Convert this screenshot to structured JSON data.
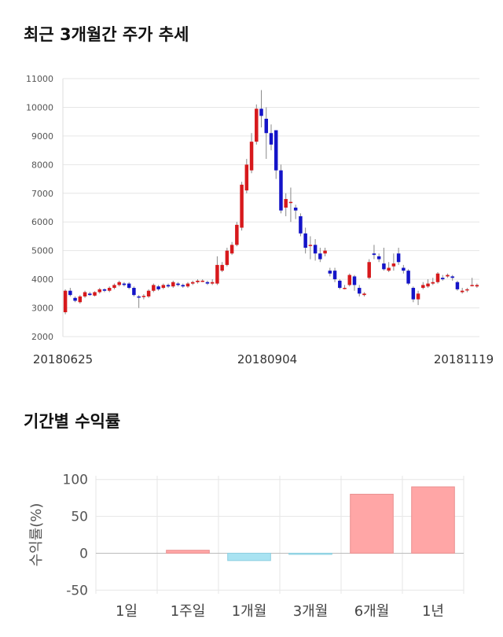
{
  "sections": {
    "price_title": "최근 3개월간 주가 추세",
    "return_title": "기간별 수익률"
  },
  "colors": {
    "up": "#d7191c",
    "down": "#1414c8",
    "bar_positive": "#ffa6a6",
    "bar_negative": "#a9e3f2"
  },
  "chart_data": [
    {
      "type": "candlestick",
      "ylim": [
        2000,
        11000
      ],
      "yticks": [
        2000,
        3000,
        4000,
        5000,
        6000,
        7000,
        8000,
        9000,
        10000,
        11000
      ],
      "x_tick_labels": [
        "20180625",
        "20180904",
        "20181119"
      ],
      "grid": true,
      "candles": [
        [
          2850,
          3600,
          2780,
          3650
        ],
        [
          3600,
          3450,
          3400,
          3700
        ],
        [
          3350,
          3250,
          3200,
          3400
        ],
        [
          3200,
          3400,
          3150,
          3450
        ],
        [
          3400,
          3550,
          3350,
          3600
        ],
        [
          3500,
          3450,
          3420,
          3560
        ],
        [
          3430,
          3550,
          3400,
          3580
        ],
        [
          3550,
          3650,
          3500,
          3700
        ],
        [
          3650,
          3600,
          3550,
          3680
        ],
        [
          3600,
          3700,
          3550,
          3750
        ],
        [
          3700,
          3800,
          3650,
          3850
        ],
        [
          3800,
          3900,
          3750,
          3950
        ],
        [
          3850,
          3800,
          3750,
          3900
        ],
        [
          3850,
          3700,
          3650,
          3900
        ],
        [
          3700,
          3450,
          3400,
          3750
        ],
        [
          3400,
          3380,
          3000,
          3450
        ],
        [
          3380,
          3420,
          3300,
          3480
        ],
        [
          3400,
          3600,
          3350,
          3650
        ],
        [
          3600,
          3800,
          3550,
          3850
        ],
        [
          3750,
          3650,
          3600,
          3800
        ],
        [
          3700,
          3800,
          3650,
          3850
        ],
        [
          3800,
          3750,
          3700,
          3850
        ],
        [
          3750,
          3900,
          3700,
          3950
        ],
        [
          3850,
          3800,
          3750,
          3900
        ],
        [
          3800,
          3750,
          3700,
          3850
        ],
        [
          3750,
          3850,
          3700,
          3900
        ],
        [
          3850,
          3900,
          3800,
          3950
        ],
        [
          3900,
          3950,
          3850,
          4000
        ],
        [
          3950,
          3950,
          3900,
          4000
        ],
        [
          3900,
          3850,
          3800,
          3950
        ],
        [
          3850,
          3900,
          3800,
          4000
        ],
        [
          3850,
          4500,
          3800,
          4800
        ],
        [
          4300,
          4500,
          4250,
          4600
        ],
        [
          4500,
          5000,
          4450,
          5100
        ],
        [
          4900,
          5200,
          4850,
          5300
        ],
        [
          5200,
          5900,
          5150,
          6000
        ],
        [
          5800,
          7300,
          5700,
          7400
        ],
        [
          7100,
          8000,
          7000,
          8200
        ],
        [
          7800,
          8800,
          7700,
          9100
        ],
        [
          8800,
          9950,
          8700,
          10100
        ],
        [
          9950,
          9700,
          9300,
          10600
        ],
        [
          9600,
          9100,
          8200,
          10000
        ],
        [
          9100,
          8700,
          8500,
          9400
        ],
        [
          9200,
          7800,
          7500,
          9200
        ],
        [
          7800,
          6400,
          6300,
          8000
        ],
        [
          6500,
          6800,
          6200,
          7000
        ],
        [
          6700,
          6700,
          6000,
          7200
        ],
        [
          6500,
          6400,
          6100,
          6600
        ],
        [
          6200,
          5600,
          5500,
          6300
        ],
        [
          5600,
          5100,
          4900,
          5800
        ],
        [
          5200,
          5200,
          4700,
          5500
        ],
        [
          5200,
          4900,
          4650,
          5400
        ],
        [
          4900,
          4700,
          4600,
          5100
        ],
        [
          4900,
          5000,
          4800,
          5100
        ],
        [
          4300,
          4200,
          4100,
          4400
        ],
        [
          4300,
          4000,
          3900,
          4400
        ],
        [
          3950,
          3700,
          3650,
          4000
        ],
        [
          3700,
          3700,
          3650,
          3800
        ],
        [
          3800,
          4150,
          3750,
          4200
        ],
        [
          4100,
          3800,
          3600,
          4150
        ],
        [
          3700,
          3500,
          3400,
          3800
        ],
        [
          3450,
          3500,
          3400,
          3550
        ],
        [
          4050,
          4600,
          4000,
          4700
        ],
        [
          4900,
          4850,
          4700,
          5200
        ],
        [
          4800,
          4700,
          4600,
          4900
        ],
        [
          4550,
          4350,
          4300,
          5100
        ],
        [
          4300,
          4400,
          4250,
          4600
        ],
        [
          4450,
          4550,
          4300,
          4900
        ],
        [
          4900,
          4600,
          4500,
          5100
        ],
        [
          4400,
          4300,
          4200,
          4500
        ],
        [
          4300,
          3850,
          3800,
          4350
        ],
        [
          3700,
          3300,
          3200,
          3750
        ],
        [
          3300,
          3500,
          3100,
          3600
        ],
        [
          3700,
          3800,
          3650,
          3900
        ],
        [
          3750,
          3850,
          3700,
          4000
        ],
        [
          3850,
          3900,
          3800,
          4050
        ],
        [
          3900,
          4200,
          3850,
          4250
        ],
        [
          4050,
          4000,
          3950,
          4150
        ],
        [
          4100,
          4150,
          4050,
          4200
        ],
        [
          4100,
          4050,
          3950,
          4150
        ],
        [
          3900,
          3650,
          3600,
          3950
        ],
        [
          3550,
          3600,
          3500,
          3700
        ],
        [
          3650,
          3650,
          3550,
          3700
        ],
        [
          3800,
          3800,
          3750,
          4050
        ],
        [
          3750,
          3800,
          3700,
          3850
        ]
      ]
    },
    {
      "type": "bar",
      "ylabel": "수익률(%)",
      "ylim": [
        -55,
        105
      ],
      "yticks": [
        -50,
        0,
        50,
        100
      ],
      "categories": [
        "1일",
        "1주일",
        "1개월",
        "3개월",
        "6개월",
        "1년"
      ],
      "values": [
        0,
        4,
        -10,
        -1,
        80,
        90
      ],
      "grid": true
    }
  ]
}
